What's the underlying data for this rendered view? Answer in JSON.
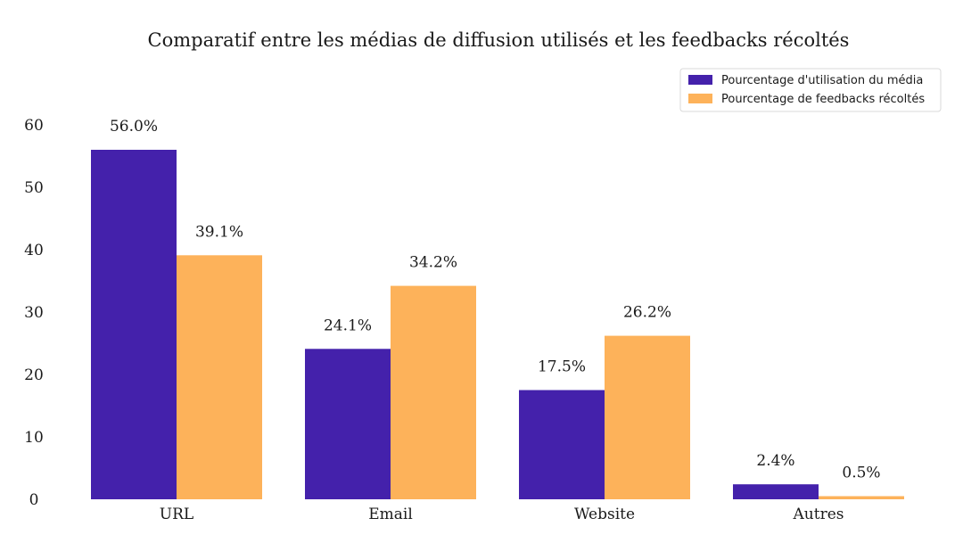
{
  "chart_data": {
    "type": "bar",
    "title": "Comparatif entre les médias de diffusion utilisés et les feedbacks récoltés",
    "xlabel": "",
    "ylabel": "",
    "categories": [
      "URL",
      "Email",
      "Website",
      "Autres"
    ],
    "series": [
      {
        "name": "Pourcentage d'utilisation du média",
        "color": "#4421ab",
        "values": [
          56.0,
          24.1,
          17.5,
          2.4
        ],
        "labels": [
          "56.0%",
          "24.1%",
          "17.5%",
          "2.4%"
        ]
      },
      {
        "name": "Pourcentage de feedbacks récoltés",
        "color": "#fdb25a",
        "values": [
          39.1,
          34.2,
          26.2,
          0.5
        ],
        "labels": [
          "39.1%",
          "34.2%",
          "26.2%",
          "0.5%"
        ]
      }
    ],
    "ylim": [
      0,
      60
    ],
    "yticks": [
      "0",
      "10",
      "20",
      "30",
      "40",
      "50",
      "60"
    ],
    "grid": false,
    "legend_position": "top-right"
  }
}
